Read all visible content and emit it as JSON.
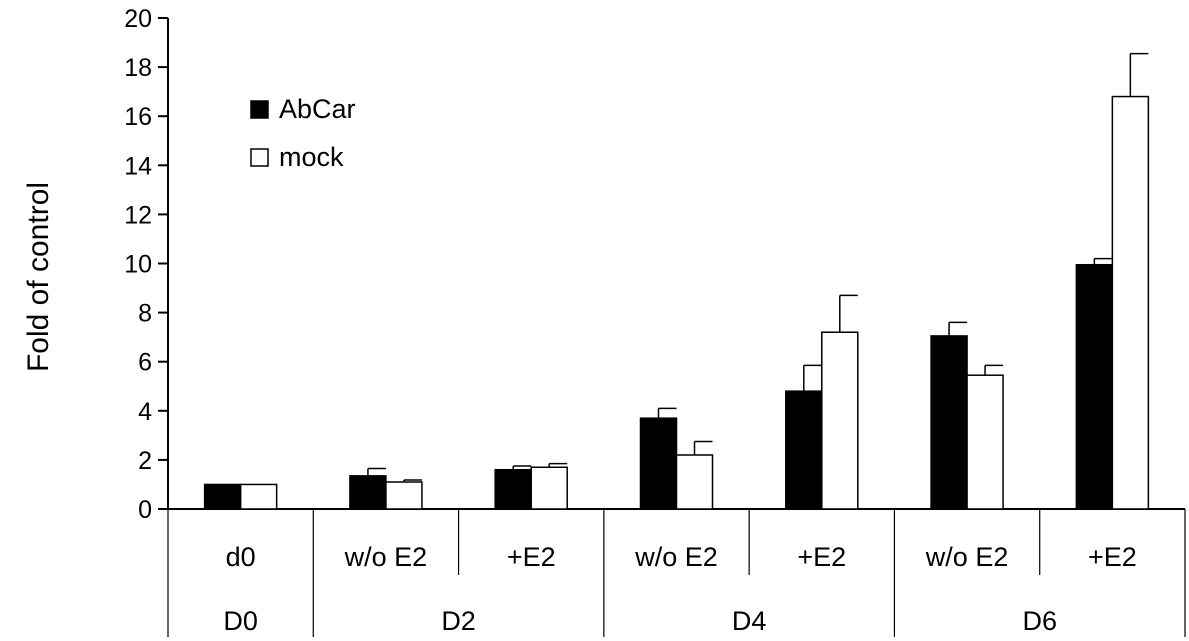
{
  "chart_data": {
    "type": "bar",
    "ylabel": "Fold of control",
    "xlabel": "",
    "ylim": [
      0,
      20
    ],
    "yticks": [
      0,
      2,
      4,
      6,
      8,
      10,
      12,
      14,
      16,
      18,
      20
    ],
    "categories": [
      "d0",
      "w/o E2",
      "+E2",
      "w/o E2",
      "+E2",
      "w/o E2",
      "+E2"
    ],
    "groups": [
      {
        "label": "D0",
        "span": 1
      },
      {
        "label": "D2",
        "span": 2
      },
      {
        "label": "D4",
        "span": 2
      },
      {
        "label": "D6",
        "span": 2
      }
    ],
    "series": [
      {
        "name": "AbCar",
        "color": "#000000",
        "values": [
          1.0,
          1.35,
          1.6,
          3.7,
          4.8,
          7.05,
          9.95
        ],
        "errors": [
          0.0,
          0.3,
          0.15,
          0.4,
          1.05,
          0.55,
          0.25
        ]
      },
      {
        "name": "mock",
        "color": "#ffffff",
        "values": [
          1.0,
          1.1,
          1.7,
          2.2,
          7.2,
          5.45,
          16.8
        ],
        "errors": [
          0.0,
          0.08,
          0.15,
          0.55,
          1.5,
          0.4,
          1.75
        ]
      }
    ],
    "legend": "top-left",
    "grid": false
  }
}
